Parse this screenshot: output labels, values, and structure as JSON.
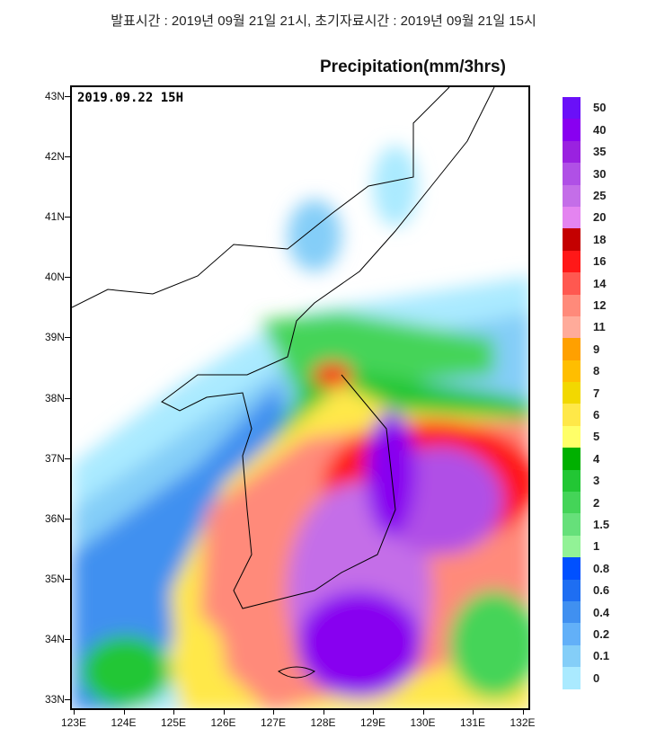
{
  "header": "발표시간 : 2019년 09월 21일 21시, 초기자료시간 : 2019년 09월 21일 15시",
  "title": "Precipitation(mm/3hrs)",
  "valid_time": "2019.09.22  15H",
  "lat_labels": [
    "43N",
    "42N",
    "41N",
    "40N",
    "39N",
    "38N",
    "37N",
    "36N",
    "35N",
    "34N",
    "33N"
  ],
  "lon_labels": [
    "123E",
    "124E",
    "125E",
    "126E",
    "127E",
    "128E",
    "129E",
    "130E",
    "131E",
    "132E"
  ],
  "legend": {
    "labels": [
      "50",
      "40",
      "35",
      "30",
      "25",
      "20",
      "18",
      "16",
      "14",
      "12",
      "11",
      "9",
      "8",
      "7",
      "6",
      "5",
      "4",
      "3",
      "2",
      "1.5",
      "1",
      "0.8",
      "0.6",
      "0.4",
      "0.2",
      "0.1",
      "0"
    ],
    "colors": [
      "#6a10f8",
      "#8800f0",
      "#9a22e0",
      "#b050e6",
      "#c46ee8",
      "#e484f0",
      "#c40000",
      "#ff1818",
      "#ff5850",
      "#ff8a7a",
      "#ffab9a",
      "#ffa000",
      "#ffbe00",
      "#f2d800",
      "#ffe848",
      "#ffff68",
      "#00b000",
      "#22c634",
      "#44d458",
      "#66e07a",
      "#92f296",
      "#0050ff",
      "#1e6ef2",
      "#4090f0",
      "#62b0f8",
      "#84cef8",
      "#aaeaff"
    ]
  }
}
